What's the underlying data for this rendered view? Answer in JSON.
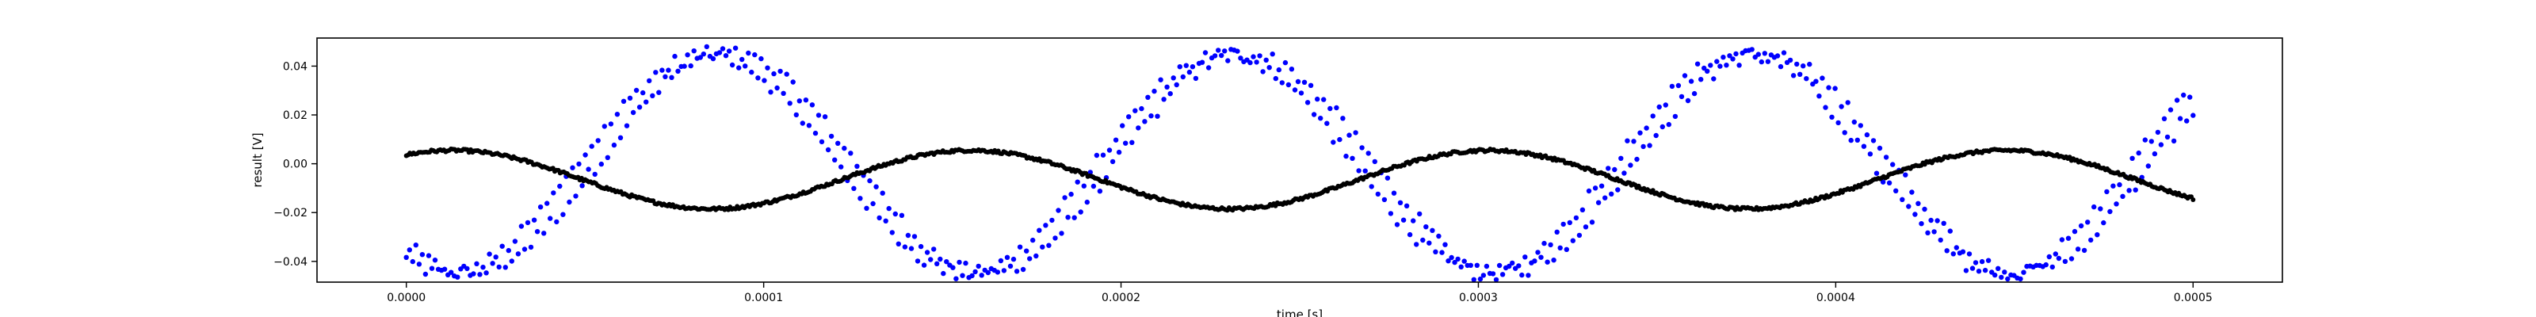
{
  "chart_data": {
    "type": "scatter",
    "title": "",
    "xlabel": "time [s]",
    "ylabel": "result [V]",
    "xlim": [
      -2.5e-05,
      0.000525
    ],
    "ylim": [
      -0.0485,
      0.0515
    ],
    "x_ticks": [
      0.0,
      0.0001,
      0.0002,
      0.0003,
      0.0004,
      0.0005
    ],
    "x_tick_labels": [
      "0.0000",
      "0.0001",
      "0.0002",
      "0.0003",
      "0.0004",
      "0.0005"
    ],
    "y_ticks": [
      -0.04,
      -0.02,
      0.0,
      0.02,
      0.04
    ],
    "y_tick_labels": [
      "−0.04",
      "−0.02",
      "0.00",
      "0.02",
      "0.04"
    ],
    "grid": false,
    "legend": null,
    "x_range": [
      0.0,
      0.0005
    ],
    "sample_count": 1000,
    "series": [
      {
        "color": "#0000ff",
        "marker_style": "scattered points, two interleaved traces",
        "model": "sine",
        "amplitude": 0.045,
        "offset": 0.0,
        "frequency_hz": 6900,
        "phase_rad": -2.2,
        "key_points": [
          {
            "x": 0.0,
            "y": -0.03
          },
          {
            "x": 5.5e-05,
            "y": 0.045
          },
          {
            "x": 0.00013,
            "y": -0.04
          },
          {
            "x": 0.0002,
            "y": 0.047
          },
          {
            "x": 0.00027,
            "y": -0.042
          },
          {
            "x": 0.00034,
            "y": 0.047
          },
          {
            "x": 0.00041,
            "y": -0.043
          },
          {
            "x": 0.00048,
            "y": 0.047
          },
          {
            "x": 0.0005,
            "y": 0.043
          }
        ]
      },
      {
        "color": "#000000",
        "marker_style": "dense points forming a thick line",
        "model": "sine",
        "amplitude": 0.012,
        "offset": -0.0065,
        "frequency_hz": 6900,
        "phase_rad": 1.01,
        "key_points": [
          {
            "x": 0.0,
            "y": 0.0065
          },
          {
            "x": 6e-05,
            "y": -0.018
          },
          {
            "x": 0.000135,
            "y": 0.0055
          },
          {
            "x": 0.0002,
            "y": -0.018
          },
          {
            "x": 0.00028,
            "y": 0.005
          },
          {
            "x": 0.00035,
            "y": -0.0185
          },
          {
            "x": 0.00042,
            "y": 0.005
          },
          {
            "x": 0.0005,
            "y": -0.0195
          }
        ]
      }
    ]
  }
}
